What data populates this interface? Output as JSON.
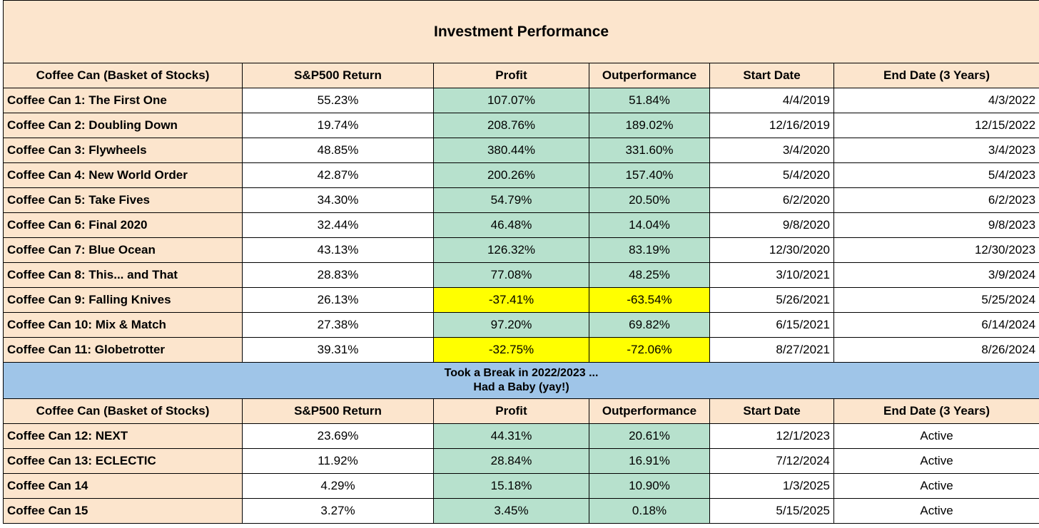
{
  "title": "Investment Performance",
  "columns": [
    "Coffee Can (Basket of Stocks)",
    "S&P500 Return",
    "Profit",
    "Outperformance",
    "Start Date",
    "End Date (3 Years)"
  ],
  "rows_a": [
    {
      "name": "Coffee Can 1: The First One",
      "sp": "55.23%",
      "profit": "107.07%",
      "out": "51.84%",
      "start": "4/4/2019",
      "end": "4/3/2022",
      "hl": "green"
    },
    {
      "name": "Coffee Can 2: Doubling Down",
      "sp": "19.74%",
      "profit": "208.76%",
      "out": "189.02%",
      "start": "12/16/2019",
      "end": "12/15/2022",
      "hl": "green"
    },
    {
      "name": "Coffee Can 3: Flywheels",
      "sp": "48.85%",
      "profit": "380.44%",
      "out": "331.60%",
      "start": "3/4/2020",
      "end": "3/4/2023",
      "hl": "green"
    },
    {
      "name": "Coffee Can 4: New World Order",
      "sp": "42.87%",
      "profit": "200.26%",
      "out": "157.40%",
      "start": "5/4/2020",
      "end": "5/4/2023",
      "hl": "green"
    },
    {
      "name": "Coffee Can 5: Take Fives",
      "sp": "34.30%",
      "profit": "54.79%",
      "out": "20.50%",
      "start": "6/2/2020",
      "end": "6/2/2023",
      "hl": "green"
    },
    {
      "name": "Coffee Can 6: Final 2020",
      "sp": "32.44%",
      "profit": "46.48%",
      "out": "14.04%",
      "start": "9/8/2020",
      "end": "9/8/2023",
      "hl": "green"
    },
    {
      "name": "Coffee Can 7: Blue Ocean",
      "sp": "43.13%",
      "profit": "126.32%",
      "out": "83.19%",
      "start": "12/30/2020",
      "end": "12/30/2023",
      "hl": "green"
    },
    {
      "name": "Coffee Can 8: This... and That",
      "sp": "28.83%",
      "profit": "77.08%",
      "out": "48.25%",
      "start": "3/10/2021",
      "end": "3/9/2024",
      "hl": "green"
    },
    {
      "name": "Coffee Can 9: Falling Knives",
      "sp": "26.13%",
      "profit": "-37.41%",
      "out": "-63.54%",
      "start": "5/26/2021",
      "end": "5/25/2024",
      "hl": "yellow"
    },
    {
      "name": "Coffee Can 10: Mix & Match",
      "sp": "27.38%",
      "profit": "97.20%",
      "out": "69.82%",
      "start": "6/15/2021",
      "end": "6/14/2024",
      "hl": "green"
    },
    {
      "name": "Coffee Can 11: Globetrotter",
      "sp": "39.31%",
      "profit": "-32.75%",
      "out": "-72.06%",
      "start": "8/27/2021",
      "end": "8/26/2024",
      "hl": "yellow"
    }
  ],
  "break_line1": "Took a Break in 2022/2023 ...",
  "break_line2": "Had a Baby (yay!)",
  "rows_b": [
    {
      "name": "Coffee Can 12: NEXT",
      "sp": "23.69%",
      "profit": "44.31%",
      "out": "20.61%",
      "start": "12/1/2023",
      "end": "Active",
      "hl": "green"
    },
    {
      "name": "Coffee Can 13: ECLECTIC",
      "sp": "11.92%",
      "profit": "28.84%",
      "out": "16.91%",
      "start": "7/12/2024",
      "end": "Active",
      "hl": "green"
    },
    {
      "name": "Coffee Can 14",
      "sp": "4.29%",
      "profit": "15.18%",
      "out": "10.90%",
      "start": "1/3/2025",
      "end": "Active",
      "hl": "green"
    },
    {
      "name": "Coffee Can 15",
      "sp": "3.27%",
      "profit": "3.45%",
      "out": "0.18%",
      "start": "5/15/2025",
      "end": "Active",
      "hl": "green"
    }
  ],
  "colors": {
    "header_bg": "#fce5cd",
    "profit_green": "#b7e1cd",
    "loss_yellow": "#ffff00",
    "break_blue": "#9fc5e8"
  }
}
